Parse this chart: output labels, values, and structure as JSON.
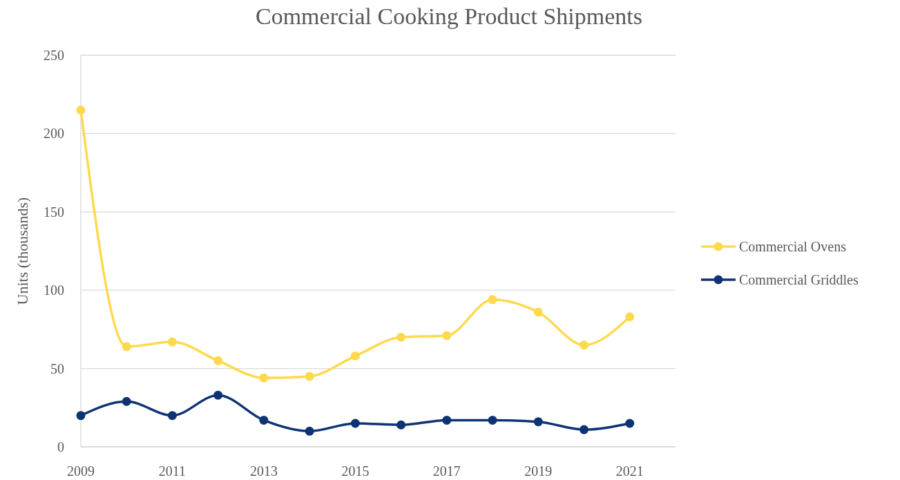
{
  "chart_data": {
    "type": "line",
    "title": "Commercial Cooking Product Shipments",
    "ylabel": "Units (thousands)",
    "x": [
      2009,
      2010,
      2011,
      2012,
      2013,
      2014,
      2015,
      2016,
      2017,
      2018,
      2019,
      2020,
      2021
    ],
    "series": [
      {
        "name": "Commercial Ovens",
        "color": "#ffd94d",
        "values": [
          215,
          64,
          67,
          55,
          44,
          45,
          58,
          70,
          71,
          94,
          86,
          65,
          83
        ]
      },
      {
        "name": "Commercial Griddles",
        "color": "#0e3375",
        "values": [
          20,
          29,
          20,
          33,
          17,
          10,
          15,
          14,
          17,
          17,
          16,
          11,
          15
        ]
      }
    ],
    "xlim": [
      2009,
      2022
    ],
    "xticks": [
      2009,
      2011,
      2013,
      2015,
      2017,
      2019,
      2021
    ],
    "ylim": [
      0,
      250
    ],
    "yticks": [
      0,
      50,
      100,
      150,
      200,
      250
    ],
    "grid": "y",
    "legend": "right",
    "marker": "circle",
    "line_style": "solid"
  }
}
